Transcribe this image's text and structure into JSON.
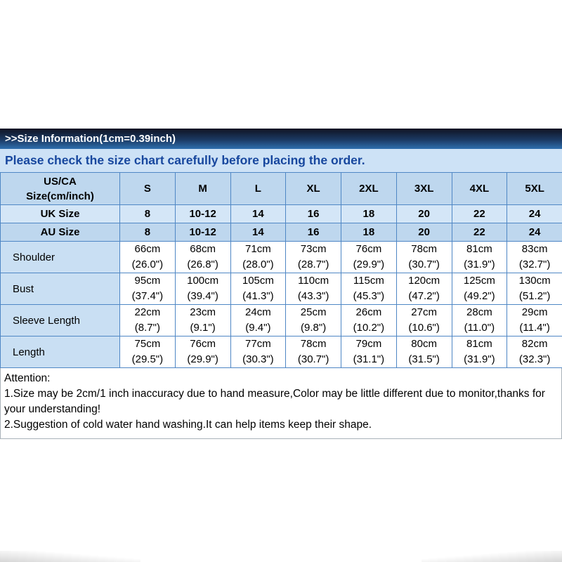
{
  "banner": {
    "title": ">>Size Information(1cm=0.39inch)"
  },
  "notice": {
    "text": "Please check the size chart carefully before placing the order."
  },
  "size_table": {
    "corner_label": [
      "US/CA",
      "Size(cm/inch)"
    ],
    "size_headers": [
      "S",
      "M",
      "L",
      "XL",
      "2XL",
      "3XL",
      "4XL",
      "5XL"
    ],
    "size_rows": [
      {
        "label": "UK Size",
        "values": [
          "8",
          "10-12",
          "14",
          "16",
          "18",
          "20",
          "22",
          "24"
        ]
      },
      {
        "label": "AU Size",
        "values": [
          "8",
          "10-12",
          "14",
          "16",
          "18",
          "20",
          "22",
          "24"
        ]
      }
    ],
    "measurement_rows": [
      {
        "label": "Shoulder",
        "cells": [
          {
            "cm": "66cm",
            "inch": "(26.0\")"
          },
          {
            "cm": "68cm",
            "inch": "(26.8\")"
          },
          {
            "cm": "71cm",
            "inch": "(28.0\")"
          },
          {
            "cm": "73cm",
            "inch": "(28.7\")"
          },
          {
            "cm": "76cm",
            "inch": "(29.9\")"
          },
          {
            "cm": "78cm",
            "inch": "(30.7\")"
          },
          {
            "cm": "81cm",
            "inch": "(31.9\")"
          },
          {
            "cm": "83cm",
            "inch": "(32.7\")"
          }
        ]
      },
      {
        "label": "Bust",
        "cells": [
          {
            "cm": "95cm",
            "inch": "(37.4\")"
          },
          {
            "cm": "100cm",
            "inch": "(39.4\")"
          },
          {
            "cm": "105cm",
            "inch": "(41.3\")"
          },
          {
            "cm": "110cm",
            "inch": "(43.3\")"
          },
          {
            "cm": "115cm",
            "inch": "(45.3\")"
          },
          {
            "cm": "120cm",
            "inch": "(47.2\")"
          },
          {
            "cm": "125cm",
            "inch": "(49.2\")"
          },
          {
            "cm": "130cm",
            "inch": "(51.2\")"
          }
        ]
      },
      {
        "label": "Sleeve Length",
        "cells": [
          {
            "cm": "22cm",
            "inch": "(8.7\")"
          },
          {
            "cm": "23cm",
            "inch": "(9.1\")"
          },
          {
            "cm": "24cm",
            "inch": "(9.4\")"
          },
          {
            "cm": "25cm",
            "inch": "(9.8\")"
          },
          {
            "cm": "26cm",
            "inch": "(10.2\")"
          },
          {
            "cm": "27cm",
            "inch": "(10.6\")"
          },
          {
            "cm": "28cm",
            "inch": "(11.0\")"
          },
          {
            "cm": "29cm",
            "inch": "(11.4\")"
          }
        ]
      },
      {
        "label": "Length",
        "cells": [
          {
            "cm": "75cm",
            "inch": "(29.5\")"
          },
          {
            "cm": "76cm",
            "inch": "(29.9\")"
          },
          {
            "cm": "77cm",
            "inch": "(30.3\")"
          },
          {
            "cm": "78cm",
            "inch": "(30.7\")"
          },
          {
            "cm": "79cm",
            "inch": "(31.1\")"
          },
          {
            "cm": "80cm",
            "inch": "(31.5\")"
          },
          {
            "cm": "81cm",
            "inch": "(31.9\")"
          },
          {
            "cm": "82cm",
            "inch": "(32.3\")"
          }
        ]
      }
    ]
  },
  "attention": {
    "title": "Attention:",
    "items": [
      "1.Size may be 2cm/1 inch inaccuracy due to hand measure,Color may be little different due to monitor,thanks for your understanding!",
      "2.Suggestion of cold water hand washing.It can help items keep their shape."
    ]
  },
  "colors": {
    "banner_gradient_top": "#101322",
    "banner_gradient_bottom": "#2e6fae",
    "banner_text": "#ffffff",
    "notice_bg": "#cde2f6",
    "notice_text": "#17479e",
    "table_border": "#4f87c5",
    "header_row_bg": "#bed7ee",
    "uk_row_bg": "#d4e6f7",
    "au_row_bg": "#bed7ee",
    "measure_label_bg": "#c9dff3",
    "cell_bg": "#ffffff",
    "text": "#000000"
  }
}
